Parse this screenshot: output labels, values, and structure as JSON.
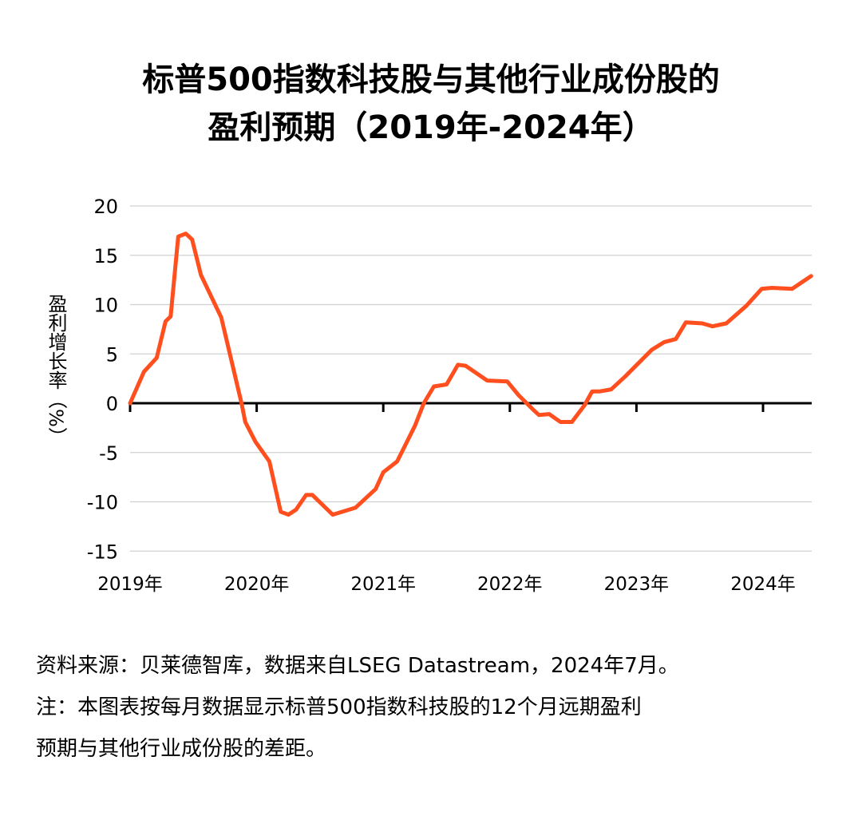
{
  "chart_data": {
    "type": "line",
    "title": "标普500指数科技股与其他行业成份股的",
    "title_line2": "盈利预期（2019年-2024年）",
    "ylabel": "盈利增长率（%）",
    "xlabel": "",
    "ylim": [
      -15,
      20
    ],
    "xlim": [
      2019,
      2024.4
    ],
    "yticks": [
      "20",
      "15",
      "10",
      "5",
      "0",
      "-5",
      "-10",
      "-15"
    ],
    "ytick_values": [
      20,
      15,
      10,
      5,
      0,
      -5,
      -10,
      -15
    ],
    "xticks": [
      "2019年",
      "2020年",
      "2021年",
      "2022年",
      "2023年",
      "2024年"
    ],
    "xtick_values": [
      2019,
      2020,
      2021,
      2022,
      2023,
      2024
    ],
    "grid": true,
    "line_color": "#ff4f1f",
    "series": [
      {
        "x": [
          2019.0,
          2019.11,
          2019.21,
          2019.28,
          2019.32,
          2019.38,
          2019.44,
          2019.49,
          2019.56,
          2019.72,
          2019.88,
          2019.91,
          2019.99,
          2020.1,
          2020.19,
          2020.25,
          2020.31,
          2020.39,
          2020.44,
          2020.6,
          2020.78,
          2020.94,
          2021.0,
          2021.11,
          2021.25,
          2021.32,
          2021.4,
          2021.5,
          2021.59,
          2021.65,
          2021.82,
          2021.98,
          2022.07,
          2022.18,
          2022.23,
          2022.31,
          2022.4,
          2022.49,
          2022.59,
          2022.65,
          2022.71,
          2022.8,
          2022.91,
          2023.12,
          2023.22,
          2023.31,
          2023.39,
          2023.52,
          2023.6,
          2023.71,
          2023.87,
          2023.99,
          2024.07,
          2024.23,
          2024.38
        ],
        "y": [
          0,
          3.2,
          4.6,
          8.3,
          8.8,
          16.9,
          17.2,
          16.6,
          13.0,
          8.7,
          0,
          -1.9,
          -3.9,
          -5.9,
          -11.0,
          -11.3,
          -10.8,
          -9.3,
          -9.3,
          -11.3,
          -10.6,
          -8.7,
          -7.0,
          -5.9,
          -2.3,
          0,
          1.7,
          1.9,
          3.9,
          3.8,
          2.3,
          2.2,
          0.8,
          -0.6,
          -1.2,
          -1.1,
          -1.9,
          -1.9,
          -0.2,
          1.2,
          1.2,
          1.4,
          2.7,
          5.4,
          6.2,
          6.5,
          8.2,
          8.1,
          7.8,
          8.1,
          9.9,
          11.6,
          11.7,
          11.6,
          12.9
        ]
      }
    ]
  },
  "footnote": {
    "line1": "资料来源：贝莱德智库，数据来自LSEG Datastream，2024年7月。",
    "line2": "注：本图表按每月数据显示标普500指数科技股的12个月远期盈利",
    "line3": "预期与其他行业成份股的差距。"
  }
}
